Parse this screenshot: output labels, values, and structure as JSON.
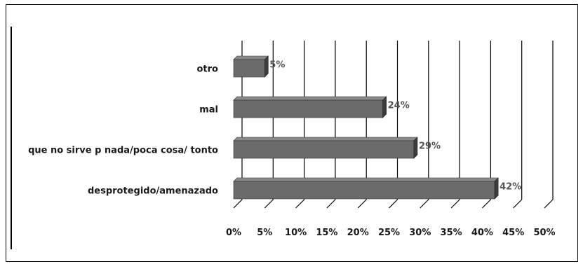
{
  "chart_data": {
    "type": "bar",
    "orientation": "horizontal",
    "categories": [
      "otro",
      "mal",
      "que no sirve p nada/poca cosa/ tonto",
      "desprotegido/amenazado"
    ],
    "values": [
      5,
      24,
      29,
      42
    ],
    "value_labels": [
      "5%",
      "24%",
      "29%",
      "42%"
    ],
    "x_ticks": [
      "0%",
      "5%",
      "10%",
      "15%",
      "20%",
      "25%",
      "30%",
      "35%",
      "40%",
      "45%",
      "50%"
    ],
    "xlim": [
      0,
      50
    ],
    "grid": true,
    "style": "3d",
    "bar_color": "#6b6b6b",
    "title": "",
    "xlabel": "",
    "ylabel": ""
  }
}
